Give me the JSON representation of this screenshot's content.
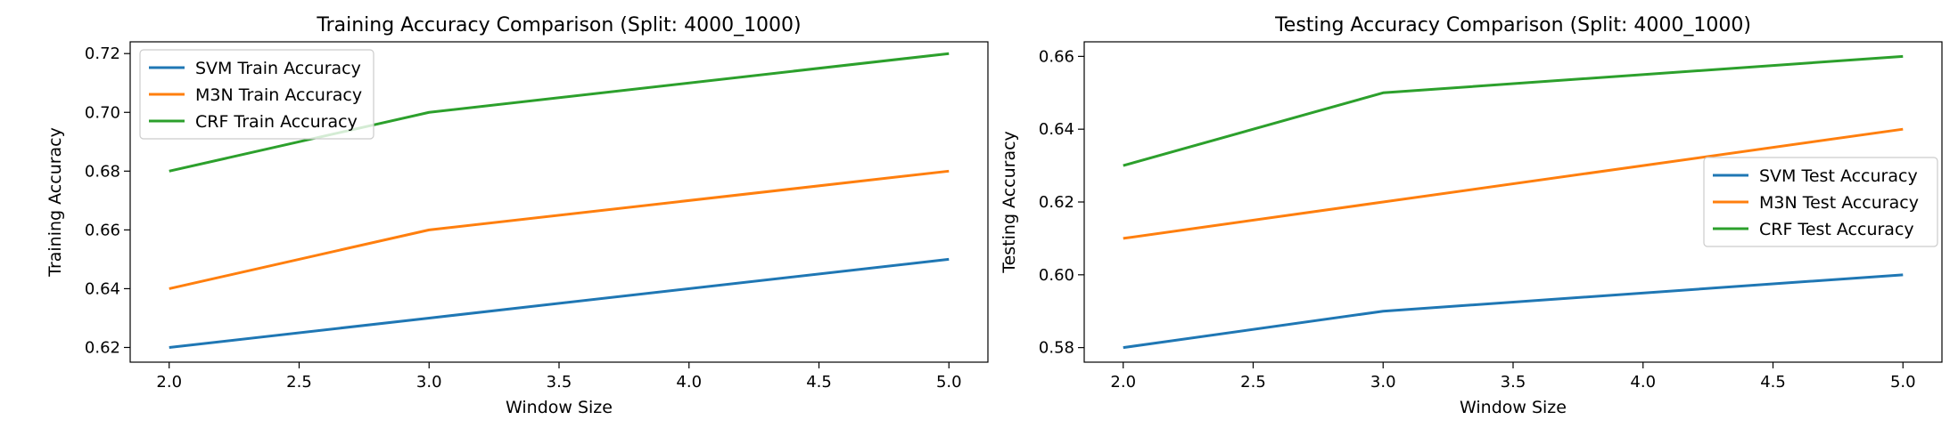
{
  "chart_data": [
    {
      "type": "line",
      "title": "Training Accuracy Comparison (Split: 4000_1000)",
      "xlabel": "Window Size",
      "ylabel": "Training Accuracy",
      "x": [
        2.0,
        3.0,
        5.0
      ],
      "xlim": [
        1.85,
        5.15
      ],
      "ylim": [
        0.615,
        0.724
      ],
      "xticks": [
        2.0,
        2.5,
        3.0,
        3.5,
        4.0,
        4.5,
        5.0
      ],
      "xtick_labels": [
        "2.0",
        "2.5",
        "3.0",
        "3.5",
        "4.0",
        "4.5",
        "5.0"
      ],
      "yticks": [
        0.62,
        0.64,
        0.66,
        0.68,
        0.7,
        0.72
      ],
      "ytick_labels": [
        "0.62",
        "0.64",
        "0.66",
        "0.68",
        "0.70",
        "0.72"
      ],
      "grid": false,
      "legend_position": "top-left",
      "series": [
        {
          "name": "SVM Train Accuracy",
          "color": "#1f77b4",
          "values": [
            0.62,
            0.63,
            0.65
          ]
        },
        {
          "name": "M3N Train Accuracy",
          "color": "#ff7f0e",
          "values": [
            0.64,
            0.66,
            0.68
          ]
        },
        {
          "name": "CRF Train Accuracy",
          "color": "#2ca02c",
          "values": [
            0.68,
            0.7,
            0.72
          ]
        }
      ]
    },
    {
      "type": "line",
      "title": "Testing Accuracy Comparison (Split: 4000_1000)",
      "xlabel": "Window Size",
      "ylabel": "Testing Accuracy",
      "x": [
        2.0,
        3.0,
        5.0
      ],
      "xlim": [
        1.85,
        5.15
      ],
      "ylim": [
        0.576,
        0.664
      ],
      "xticks": [
        2.0,
        2.5,
        3.0,
        3.5,
        4.0,
        4.5,
        5.0
      ],
      "xtick_labels": [
        "2.0",
        "2.5",
        "3.0",
        "3.5",
        "4.0",
        "4.5",
        "5.0"
      ],
      "yticks": [
        0.58,
        0.6,
        0.62,
        0.64,
        0.66
      ],
      "ytick_labels": [
        "0.58",
        "0.60",
        "0.62",
        "0.64",
        "0.66"
      ],
      "grid": false,
      "legend_position": "center-right",
      "series": [
        {
          "name": "SVM Test Accuracy",
          "color": "#1f77b4",
          "values": [
            0.58,
            0.59,
            0.6
          ]
        },
        {
          "name": "M3N Test Accuracy",
          "color": "#ff7f0e",
          "values": [
            0.61,
            0.62,
            0.64
          ]
        },
        {
          "name": "CRF Test Accuracy",
          "color": "#2ca02c",
          "values": [
            0.63,
            0.65,
            0.66
          ]
        }
      ]
    }
  ]
}
